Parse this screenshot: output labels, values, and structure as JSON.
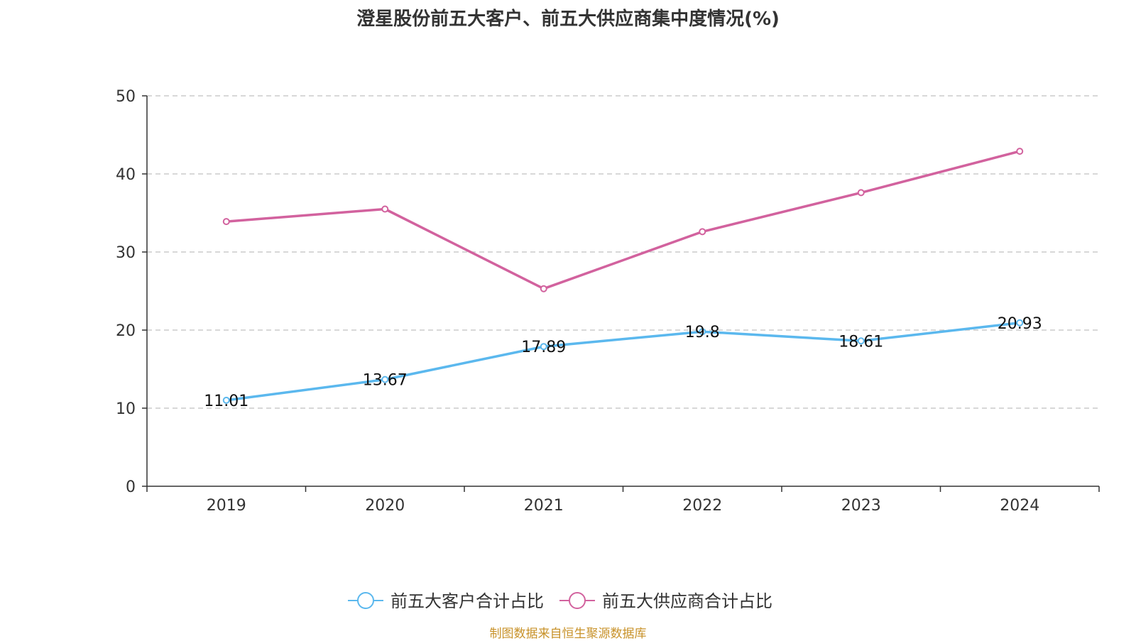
{
  "chart_data": {
    "type": "line",
    "title": "澄星股份前五大客户、前五大供应商集中度情况(%)",
    "categories": [
      "2019",
      "2020",
      "2021",
      "2022",
      "2023",
      "2024"
    ],
    "ylim": [
      0,
      50
    ],
    "yticks": [
      0,
      10,
      20,
      30,
      40,
      50
    ],
    "grid": true,
    "legend_position": "bottom",
    "series": [
      {
        "name": "前五大客户合计占比",
        "values": [
          11.01,
          13.67,
          17.89,
          19.8,
          18.61,
          20.93
        ],
        "labels": [
          "11.01",
          "13.67",
          "17.89",
          "19.8",
          "18.61",
          "20.93"
        ],
        "color": "#5bb8ee"
      },
      {
        "name": "前五大供应商合计占比",
        "values": [
          33.9,
          35.5,
          25.3,
          32.6,
          37.6,
          42.9
        ],
        "color": "#d2629e"
      }
    ]
  },
  "source": "制图数据来自恒生聚源数据库"
}
